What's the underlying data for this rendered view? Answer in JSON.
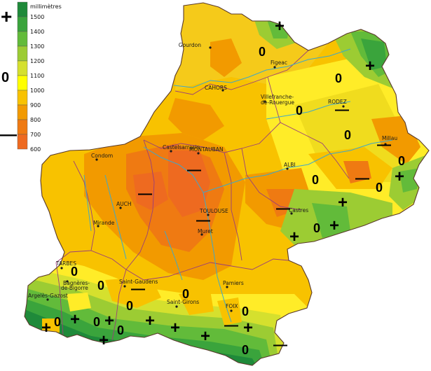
{
  "legend": {
    "unit": "millimètres",
    "plus_symbol": "+",
    "zero_symbol": "0",
    "minus_symbol": "—",
    "classes": [
      {
        "label": "1500",
        "color": "#1f8a3a"
      },
      {
        "label": "1400",
        "color": "#3aa43c"
      },
      {
        "label": "1300",
        "color": "#62bb3a"
      },
      {
        "label": "1200",
        "color": "#9ccc33"
      },
      {
        "label": "1100",
        "color": "#d5e02e"
      },
      {
        "label": "1000",
        "color": "#ffff00"
      },
      {
        "label": "900",
        "color": "#f8c200"
      },
      {
        "label": "800",
        "color": "#f29a00"
      },
      {
        "label": "700",
        "color": "#ef7a12"
      },
      {
        "label": "600",
        "color": "#ee6a20"
      }
    ]
  },
  "cities": [
    {
      "name": "Gourdon",
      "icon": "city-dot"
    },
    {
      "name": "Figeac",
      "icon": "city-dot"
    },
    {
      "name": "CAHORS",
      "icon": "city-dot"
    },
    {
      "name": "Villefranche-",
      "icon": "city-dot"
    },
    {
      "name": "de-Rouergue",
      "icon": "none"
    },
    {
      "name": "RODEZ",
      "icon": "city-dot"
    },
    {
      "name": "Millau",
      "icon": "city-dot"
    },
    {
      "name": "Castelsarrasin",
      "icon": "city-dot"
    },
    {
      "name": "MONTAUBAN",
      "icon": "city-dot"
    },
    {
      "name": "Condom",
      "icon": "city-dot"
    },
    {
      "name": "ALBI",
      "icon": "city-dot"
    },
    {
      "name": "AUCH",
      "icon": "city-dot"
    },
    {
      "name": "TOULOUSE",
      "icon": "city-dot"
    },
    {
      "name": "Castres",
      "icon": "city-dot"
    },
    {
      "name": "Mirande",
      "icon": "city-dot"
    },
    {
      "name": "Muret",
      "icon": "city-dot"
    },
    {
      "name": "TARBES",
      "icon": "city-dot"
    },
    {
      "name": "Bagnères-",
      "icon": "city-dot"
    },
    {
      "name": "de-Bigorre",
      "icon": "none"
    },
    {
      "name": "Argelès-Gazost",
      "icon": "city-dot"
    },
    {
      "name": "Saint-Gaudens",
      "icon": "city-dot"
    },
    {
      "name": "Pamiers",
      "icon": "city-dot"
    },
    {
      "name": "Saint-Girons",
      "icon": "city-dot"
    },
    {
      "name": "FOIX",
      "icon": "city-dot"
    }
  ],
  "markers": {
    "plus": "+",
    "zero": "0",
    "minus": "—"
  },
  "colors": {
    "river": "#3fa8c8",
    "department_border": "#9a3f7a",
    "region_border": "#5a3a2a"
  }
}
